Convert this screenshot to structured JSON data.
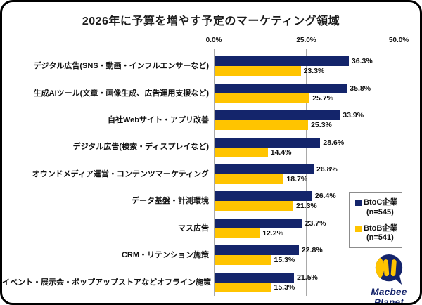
{
  "title": "2026年に予算を増やす予定のマーケティング領域",
  "chart_data": {
    "type": "bar",
    "orientation": "horizontal",
    "title": "2026年に予算を増やす予定のマーケティング領域",
    "categories": [
      "デジタル広告(SNS・動画・インフルエンサーなど)",
      "生成AIツール(文章・画像生成、広告運用支援など)",
      "自社Webサイト・アプリ改善",
      "デジタル広告(検索・ディスプレイなど)",
      "オウンドメディア運営・コンテンツマーケティング",
      "データ基盤・計測環境",
      "マス広告",
      "CRM・リテンション施策",
      "イベント・展示会・ポップアップストアなどオフライン施策"
    ],
    "series": [
      {
        "name": "BtoC企業",
        "n_label": "(n=545)",
        "color": "#14256b",
        "values": [
          36.3,
          35.8,
          33.9,
          28.6,
          26.8,
          26.4,
          23.7,
          22.8,
          21.5
        ]
      },
      {
        "name": "BtoB企業",
        "n_label": "(n=541)",
        "color": "#ffc400",
        "values": [
          23.3,
          25.7,
          25.3,
          14.4,
          18.7,
          21.3,
          12.2,
          15.3,
          15.3
        ]
      }
    ],
    "value_suffix": "%",
    "xlim": [
      0,
      50
    ],
    "x_ticks": [
      "0.0%",
      "25.0%",
      "50.0%"
    ],
    "grid": true,
    "legend_position": "right"
  },
  "colors": {
    "btoc": "#14256b",
    "btob": "#ffc400",
    "gridline": "#a9a9a9",
    "text": "#111111",
    "legend_border": "#8c8c8c"
  },
  "logo": {
    "line1": "Macbee",
    "line2": "Planet"
  }
}
